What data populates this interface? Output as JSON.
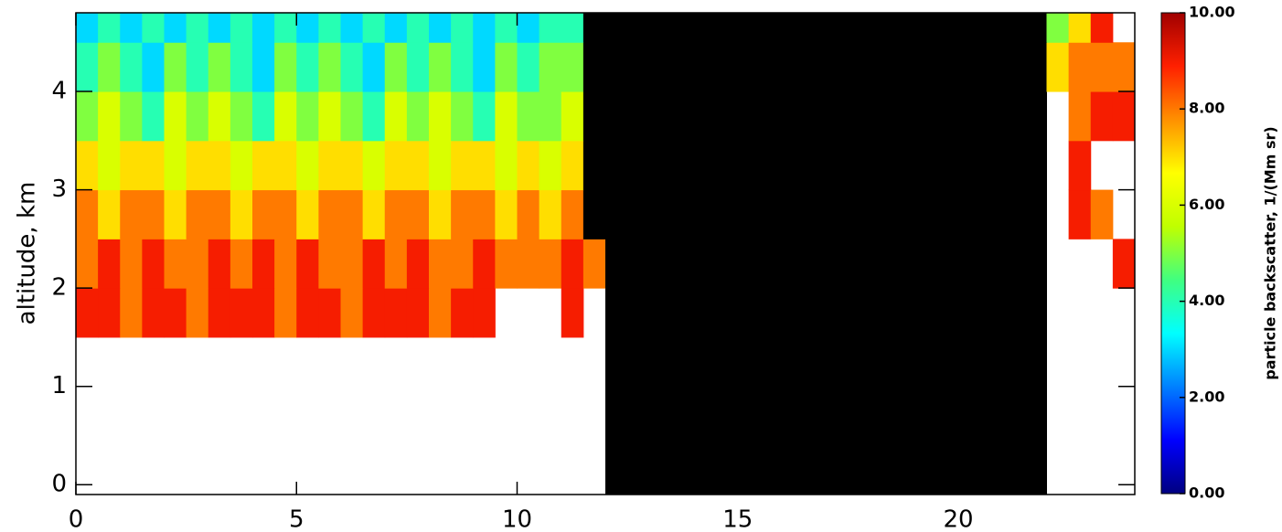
{
  "chart_data": {
    "type": "heatmap",
    "ylabel": "altitude, km",
    "colorbar_label": "particle backscatter, 1/(Mm sr)",
    "xlim": [
      0,
      24
    ],
    "xticks": [
      0,
      5,
      10,
      15,
      20
    ],
    "ylim": [
      -0.1,
      4.8
    ],
    "yticks": [
      0,
      1,
      2,
      3,
      4
    ],
    "clim": [
      0,
      10
    ],
    "cbticks": [
      {
        "value": 0,
        "label": "0.00"
      },
      {
        "value": 2,
        "label": "2.00"
      },
      {
        "value": 4,
        "label": "4.00"
      },
      {
        "value": 6,
        "label": "6.00"
      },
      {
        "value": 8,
        "label": "8.00"
      },
      {
        "value": 10,
        "label": "10.00"
      }
    ],
    "colormap": [
      "#000080",
      "#0000ff",
      "#0080ff",
      "#00ffff",
      "#40ff80",
      "#c0ff00",
      "#ffff00",
      "#ff9000",
      "#ff2000",
      "#a00000"
    ],
    "over_color": "#000000",
    "x_bins": [
      0,
      0.5,
      1,
      1.5,
      2,
      2.5,
      3,
      3.5,
      4,
      4.5,
      5,
      5.5,
      6,
      6.5,
      7,
      7.5,
      8,
      8.5,
      9,
      9.5,
      10,
      10.5,
      11,
      11.5,
      12,
      12.5,
      13,
      13.5,
      14,
      14.5,
      15,
      15.5,
      16,
      16.5,
      17,
      17.5,
      18,
      18.5,
      19,
      19.5,
      20,
      20.5,
      21,
      21.5,
      22,
      22.5,
      23,
      23.5,
      24
    ],
    "y_bins": [
      -0.1,
      0.5,
      1,
      1.5,
      2,
      2.5,
      3,
      3.5,
      4,
      4.5,
      4.8
    ],
    "z": [
      [
        null,
        null,
        null,
        null,
        null,
        null,
        null,
        null,
        null,
        null,
        null,
        null,
        null,
        null,
        null,
        null,
        null,
        null,
        null,
        null,
        null,
        null,
        null,
        null,
        50,
        50,
        50,
        50,
        50,
        50,
        50,
        50,
        50,
        50,
        50,
        50,
        50,
        50,
        50,
        50,
        50,
        50,
        50,
        50,
        null,
        null,
        null,
        null
      ],
      [
        null,
        null,
        null,
        null,
        null,
        null,
        null,
        null,
        null,
        null,
        null,
        null,
        null,
        null,
        null,
        null,
        null,
        null,
        null,
        null,
        null,
        null,
        null,
        null,
        50,
        50,
        50,
        50,
        50,
        50,
        50,
        50,
        50,
        50,
        50,
        50,
        50,
        50,
        50,
        50,
        50,
        50,
        50,
        50,
        null,
        null,
        null,
        null
      ],
      [
        null,
        null,
        null,
        null,
        null,
        null,
        null,
        null,
        null,
        null,
        null,
        null,
        null,
        null,
        null,
        null,
        null,
        null,
        null,
        null,
        null,
        null,
        null,
        null,
        50,
        50,
        50,
        50,
        50,
        50,
        50,
        50,
        50,
        50,
        50,
        50,
        50,
        50,
        50,
        50,
        50,
        50,
        50,
        50,
        null,
        null,
        null,
        null
      ],
      [
        9,
        9,
        8,
        9,
        9,
        8,
        9,
        9,
        9,
        8,
        9,
        9,
        8,
        9,
        9,
        9,
        8,
        9,
        9,
        null,
        null,
        null,
        9,
        null,
        50,
        50,
        50,
        50,
        50,
        50,
        50,
        50,
        50,
        50,
        50,
        50,
        50,
        50,
        50,
        50,
        50,
        50,
        50,
        50,
        null,
        null,
        null,
        null
      ],
      [
        8,
        9,
        8,
        9,
        8,
        8,
        9,
        8,
        9,
        8,
        9,
        8,
        8,
        9,
        8,
        9,
        8,
        8,
        9,
        8,
        8,
        8,
        9,
        8,
        50,
        50,
        50,
        50,
        50,
        50,
        50,
        50,
        50,
        50,
        50,
        50,
        50,
        50,
        50,
        50,
        50,
        50,
        50,
        50,
        null,
        null,
        null,
        9
      ],
      [
        8,
        7,
        8,
        8,
        7,
        8,
        8,
        7,
        8,
        8,
        7,
        8,
        8,
        7,
        8,
        8,
        7,
        8,
        8,
        7,
        8,
        7,
        8,
        50,
        50,
        50,
        50,
        50,
        50,
        50,
        50,
        50,
        50,
        50,
        50,
        50,
        50,
        50,
        50,
        50,
        50,
        50,
        50,
        50,
        null,
        9,
        8,
        null
      ],
      [
        7,
        6,
        7,
        7,
        6,
        7,
        7,
        6,
        7,
        7,
        6,
        7,
        7,
        6,
        7,
        7,
        6,
        7,
        7,
        6,
        7,
        6,
        7,
        50,
        50,
        50,
        50,
        50,
        50,
        50,
        50,
        50,
        50,
        50,
        50,
        50,
        50,
        50,
        50,
        50,
        50,
        50,
        50,
        50,
        null,
        9,
        null,
        null
      ],
      [
        5,
        6,
        5,
        4,
        6,
        5,
        6,
        5,
        4,
        6,
        5,
        6,
        5,
        4,
        6,
        5,
        6,
        5,
        4,
        6,
        5,
        5,
        6,
        50,
        50,
        50,
        50,
        50,
        50,
        50,
        50,
        50,
        50,
        50,
        50,
        50,
        50,
        50,
        50,
        50,
        50,
        50,
        50,
        50,
        null,
        8,
        9,
        9
      ],
      [
        4,
        5,
        4,
        3,
        5,
        4,
        5,
        4,
        3,
        5,
        4,
        5,
        4,
        3,
        5,
        4,
        5,
        4,
        3,
        5,
        4,
        5,
        5,
        50,
        50,
        50,
        50,
        50,
        50,
        50,
        50,
        50,
        50,
        50,
        50,
        50,
        50,
        50,
        50,
        50,
        50,
        50,
        50,
        50,
        7,
        8,
        8,
        8
      ],
      [
        3,
        4,
        3,
        4,
        3,
        4,
        3,
        4,
        3,
        4,
        3,
        4,
        3,
        4,
        3,
        4,
        3,
        4,
        3,
        4,
        3,
        4,
        4,
        50,
        50,
        50,
        50,
        50,
        50,
        50,
        50,
        50,
        50,
        50,
        50,
        50,
        50,
        50,
        50,
        50,
        50,
        50,
        50,
        50,
        5,
        7,
        9,
        null
      ]
    ]
  }
}
